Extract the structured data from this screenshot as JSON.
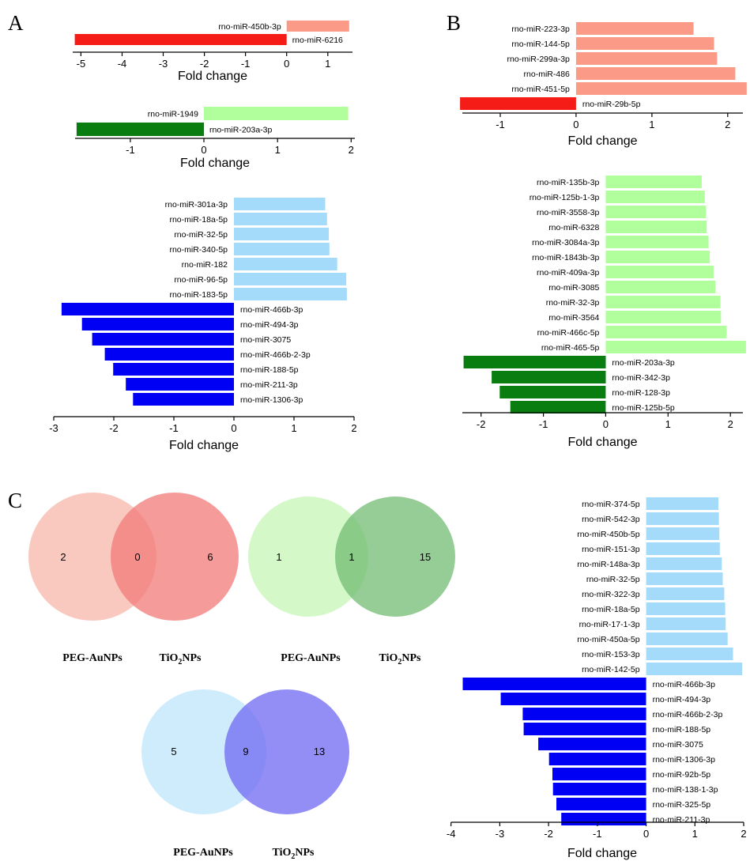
{
  "panels": [
    {
      "label": "A"
    },
    {
      "label": "B"
    },
    {
      "label": "C"
    }
  ],
  "venn": [
    {
      "left_count": "2",
      "overlap_count": "0",
      "right_count": "6",
      "left_label": "PEG-AuNPs",
      "right_label_main": "TiO",
      "right_label_sub": "2",
      "right_label_tail": "NPs",
      "left_color": "#f7b7aa",
      "right_color": "#f27a78"
    },
    {
      "left_count": "1",
      "overlap_count": "1",
      "right_count": "15",
      "left_label": "PEG-AuNPs",
      "right_label_main": "TiO",
      "right_label_sub": "2",
      "right_label_tail": "NPs",
      "left_color": "#c6f5b6",
      "right_color": "#6ab86b"
    },
    {
      "left_count": "5",
      "overlap_count": "9",
      "right_count": "13",
      "left_label": "PEG-AuNPs",
      "right_label_main": "TiO",
      "right_label_sub": "2",
      "right_label_tail": "NPs",
      "left_color": "#bfe6fb",
      "right_color": "#6f68f2"
    }
  ],
  "chart_data": [
    {
      "type": "bar",
      "orientation": "horizontal",
      "panel": "A",
      "xlabel": "Fold change",
      "xlim": [
        -5.2,
        1.6
      ],
      "xticks": [
        -5,
        -4,
        -3,
        -2,
        -1,
        0,
        1
      ],
      "series": [
        {
          "color": "#fa9a87",
          "categories": [
            "rno-miR-450b-3p"
          ],
          "values": [
            1.52
          ]
        },
        {
          "color": "#f51b17",
          "categories": [
            "rno-miR-6216"
          ],
          "values": [
            -5.15
          ]
        }
      ]
    },
    {
      "type": "bar",
      "orientation": "horizontal",
      "panel": "A",
      "xlabel": "Fold change",
      "xlim": [
        -1.75,
        2.05
      ],
      "xticks": [
        -1,
        0,
        1,
        2
      ],
      "series": [
        {
          "color": "#b0fe9c",
          "categories": [
            "rno-miR-1949"
          ],
          "values": [
            1.96
          ]
        },
        {
          "color": "#0a7d10",
          "categories": [
            "rno-miR-203a-3p"
          ],
          "values": [
            -1.73
          ]
        }
      ]
    },
    {
      "type": "bar",
      "orientation": "horizontal",
      "panel": "A",
      "xlabel": "Fold change",
      "xlim": [
        -3,
        2
      ],
      "xticks": [
        -3,
        -2,
        -1,
        0,
        1,
        2
      ],
      "series": [
        {
          "color": "#a5dbfa",
          "categories": [
            "rno-miR-301a-3p",
            "rno-miR-18a-5p",
            "rno-miR-32-5p",
            "rno-miR-340-5p",
            "rno-miR-182",
            "rno-miR-96-5p",
            "rno-miR-183-5p"
          ],
          "values": [
            1.52,
            1.55,
            1.58,
            1.59,
            1.72,
            1.87,
            1.88
          ]
        },
        {
          "color": "#0000f5",
          "categories": [
            "rno-miR-466b-3p",
            "rno-miR-494-3p",
            "rno-miR-3075",
            "rno-miR-466b-2-3p",
            "rno-miR-188-5p",
            "rno-miR-211-3p",
            "rno-miR-1306-3p"
          ],
          "values": [
            -2.87,
            -2.53,
            -2.36,
            -2.15,
            -2.01,
            -1.8,
            -1.68
          ]
        }
      ]
    },
    {
      "type": "bar",
      "orientation": "horizontal",
      "panel": "B",
      "xlabel": "Fold change",
      "xlim": [
        -1.5,
        2.2
      ],
      "xticks": [
        -1,
        0,
        1,
        2
      ],
      "series": [
        {
          "color": "#fa9a87",
          "categories": [
            "rno-miR-223-3p",
            "rno-miR-144-5p",
            "rno-miR-299a-3p",
            "rno-miR-486",
            "rno-miR-451-5p"
          ],
          "values": [
            1.55,
            1.82,
            1.86,
            2.1,
            2.25
          ]
        },
        {
          "color": "#f51b17",
          "categories": [
            "rno-miR-29b-5p"
          ],
          "values": [
            -1.53
          ]
        }
      ]
    },
    {
      "type": "bar",
      "orientation": "horizontal",
      "panel": "B",
      "xlabel": "Fold change",
      "xlim": [
        -2.3,
        2.2
      ],
      "xticks": [
        -2,
        -1,
        0,
        1,
        2
      ],
      "series": [
        {
          "color": "#b0fe9c",
          "categories": [
            "rno-miR-135b-3p",
            "rno-miR-125b-1-3p",
            "rno-miR-3558-3p",
            "rno-miR-6328",
            "rno-miR-3084a-3p",
            "rno-miR-1843b-3p",
            "rno-miR-409a-3p",
            "rno-miR-3085",
            "rno-miR-32-3p",
            "rno-miR-3564",
            "rno-miR-466c-5p",
            "rno-miR-465-5p"
          ],
          "values": [
            1.54,
            1.59,
            1.61,
            1.62,
            1.65,
            1.67,
            1.73,
            1.76,
            1.84,
            1.85,
            1.94,
            2.25
          ]
        },
        {
          "color": "#0a7d10",
          "categories": [
            "rno-miR-203a-3p",
            "rno-miR-342-3p",
            "rno-miR-128-3p",
            "rno-miR-125b-5p"
          ],
          "values": [
            -2.28,
            -1.83,
            -1.7,
            -1.53
          ]
        }
      ]
    },
    {
      "type": "bar",
      "orientation": "horizontal",
      "panel": "C",
      "xlabel": "Fold change",
      "xlim": [
        -3.8,
        2
      ],
      "xticks": [
        -4,
        -3,
        -2,
        -1,
        0,
        1,
        2
      ],
      "series": [
        {
          "color": "#a5dbfa",
          "categories": [
            "rno-miR-374-5p",
            "rno-miR-542-3p",
            "rno-miR-450b-5p",
            "rno-miR-151-3p",
            "rno-miR-148a-3p",
            "rno-miR-32-5p",
            "rno-miR-322-3p",
            "rno-miR-18a-5p",
            "rno-miR-17-1-3p",
            "rno-miR-450a-5p",
            "rno-miR-153-3p",
            "rno-miR-142-5p"
          ],
          "values": [
            1.48,
            1.49,
            1.5,
            1.51,
            1.55,
            1.57,
            1.6,
            1.62,
            1.63,
            1.67,
            1.78,
            1.97
          ]
        },
        {
          "color": "#0000f5",
          "categories": [
            "rno-miR-466b-3p",
            "rno-miR-494-3p",
            "rno-miR-466b-2-3p",
            "rno-miR-188-5p",
            "rno-miR-3075",
            "rno-miR-1306-3p",
            "rno-miR-92b-5p",
            "rno-miR-138-1-3p",
            "rno-miR-325-5p",
            "rno-miR-211-3p"
          ],
          "values": [
            -3.76,
            -2.98,
            -2.53,
            -2.51,
            -2.21,
            -1.99,
            -1.92,
            -1.91,
            -1.84,
            -1.74
          ]
        }
      ]
    }
  ]
}
